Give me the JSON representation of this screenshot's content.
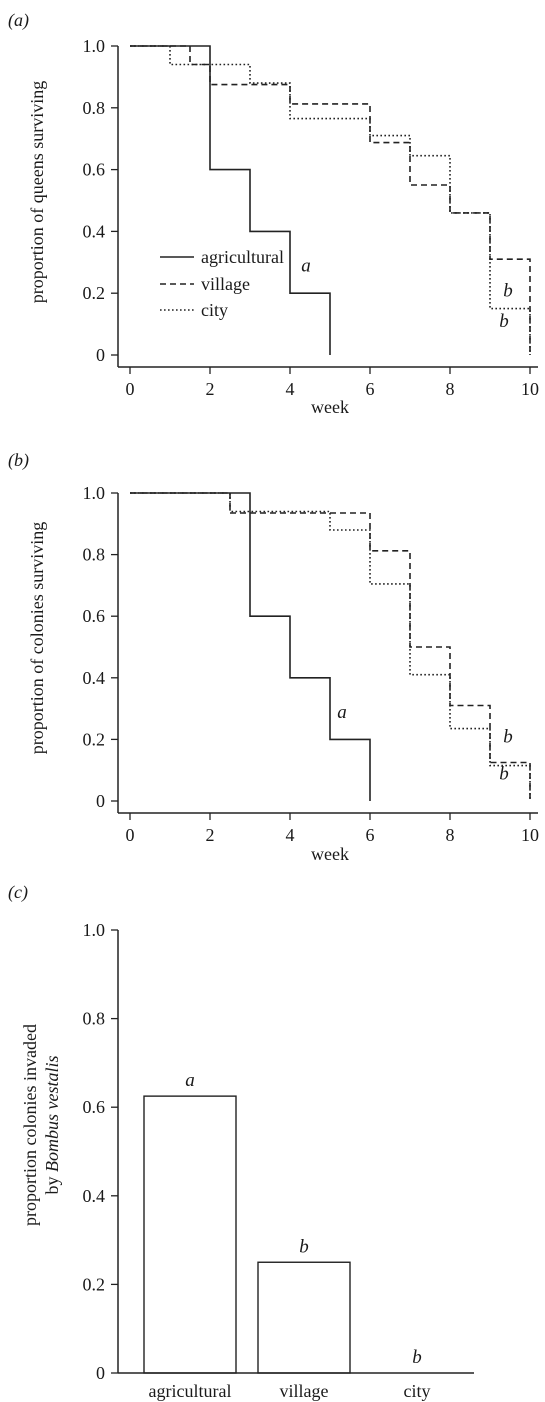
{
  "chart_data": [
    {
      "type": "line",
      "step": true,
      "panel_label": "(a)",
      "xlabel": "week",
      "ylabel": "proportion of queens surviving",
      "xlim": [
        0,
        10
      ],
      "ylim": [
        0,
        1
      ],
      "xticks": [
        "0",
        "2",
        "4",
        "6",
        "8",
        "10"
      ],
      "yticks": [
        "0",
        "0.2",
        "0.4",
        "0.6",
        "0.8",
        "1.0"
      ],
      "legend_position": "lower-left",
      "series": [
        {
          "name": "agricultural",
          "style": "solid",
          "x": [
            0,
            2,
            2,
            3,
            3,
            4,
            4,
            5,
            5
          ],
          "y": [
            1.0,
            1.0,
            0.6,
            0.6,
            0.4,
            0.4,
            0.2,
            0.2,
            0.0
          ]
        },
        {
          "name": "village",
          "style": "dashed",
          "x": [
            0,
            1.5,
            1.5,
            2,
            2,
            4,
            4,
            6,
            6,
            7,
            7,
            8,
            8,
            9,
            9,
            10,
            10
          ],
          "y": [
            1.0,
            1.0,
            0.94,
            0.94,
            0.875,
            0.875,
            0.8125,
            0.8125,
            0.6875,
            0.6875,
            0.55,
            0.55,
            0.46,
            0.46,
            0.31,
            0.31,
            0.0
          ]
        },
        {
          "name": "city",
          "style": "dotted",
          "x": [
            0,
            1,
            1,
            2,
            2,
            3,
            3,
            4,
            4,
            6,
            6,
            7,
            7,
            8,
            8,
            9,
            9,
            10,
            10
          ],
          "y": [
            1.0,
            1.0,
            0.94,
            0.94,
            0.94,
            0.94,
            0.88,
            0.88,
            0.765,
            0.765,
            0.71,
            0.71,
            0.645,
            0.645,
            0.46,
            0.46,
            0.15,
            0.15,
            0.0
          ]
        }
      ],
      "annotations": [
        {
          "text": "a",
          "x": 4.4,
          "y": 0.27
        },
        {
          "text": "b",
          "x": 9.45,
          "y": 0.19
        },
        {
          "text": "b",
          "x": 9.35,
          "y": 0.09
        }
      ]
    },
    {
      "type": "line",
      "step": true,
      "panel_label": "(b)",
      "xlabel": "week",
      "ylabel": "proportion of colonies surviving",
      "xlim": [
        0,
        10
      ],
      "ylim": [
        0,
        1
      ],
      "xticks": [
        "0",
        "2",
        "4",
        "6",
        "8",
        "10"
      ],
      "yticks": [
        "0",
        "0.2",
        "0.4",
        "0.6",
        "0.8",
        "1.0"
      ],
      "series": [
        {
          "name": "agricultural",
          "style": "solid",
          "x": [
            0,
            3,
            3,
            4,
            4,
            5,
            5,
            6,
            6
          ],
          "y": [
            1.0,
            1.0,
            0.6,
            0.6,
            0.4,
            0.4,
            0.2,
            0.2,
            0.0
          ]
        },
        {
          "name": "village",
          "style": "dashed",
          "x": [
            0,
            2.5,
            2.5,
            6,
            6,
            7,
            7,
            8,
            8,
            9,
            9,
            10,
            10
          ],
          "y": [
            1.0,
            1.0,
            0.935,
            0.935,
            0.8125,
            0.8125,
            0.5,
            0.5,
            0.31,
            0.31,
            0.125,
            0.125,
            0.0
          ]
        },
        {
          "name": "city",
          "style": "dotted",
          "x": [
            0,
            2.5,
            2.5,
            5,
            5,
            6,
            6,
            7,
            7,
            8,
            8,
            9,
            9,
            10,
            10
          ],
          "y": [
            1.0,
            1.0,
            0.94,
            0.94,
            0.88,
            0.88,
            0.705,
            0.705,
            0.41,
            0.41,
            0.235,
            0.235,
            0.115,
            0.115,
            0.0
          ]
        }
      ],
      "annotations": [
        {
          "text": "a",
          "x": 5.3,
          "y": 0.27
        },
        {
          "text": "b",
          "x": 9.45,
          "y": 0.19
        },
        {
          "text": "b",
          "x": 9.35,
          "y": 0.07
        }
      ]
    },
    {
      "type": "bar",
      "panel_label": "(c)",
      "ylabel_line1": "proportion colonies invaded",
      "ylabel_line2_prefix": "by ",
      "ylabel_line2_italic": "Bombus vestalis",
      "categories": [
        "agricultural",
        "village",
        "city"
      ],
      "values": [
        0.625,
        0.25,
        0.0
      ],
      "bar_labels": [
        "a",
        "b",
        "b"
      ],
      "ylim": [
        0,
        1
      ],
      "yticks": [
        "0",
        "0.2",
        "0.4",
        "0.6",
        "0.8",
        "1.0"
      ]
    }
  ]
}
